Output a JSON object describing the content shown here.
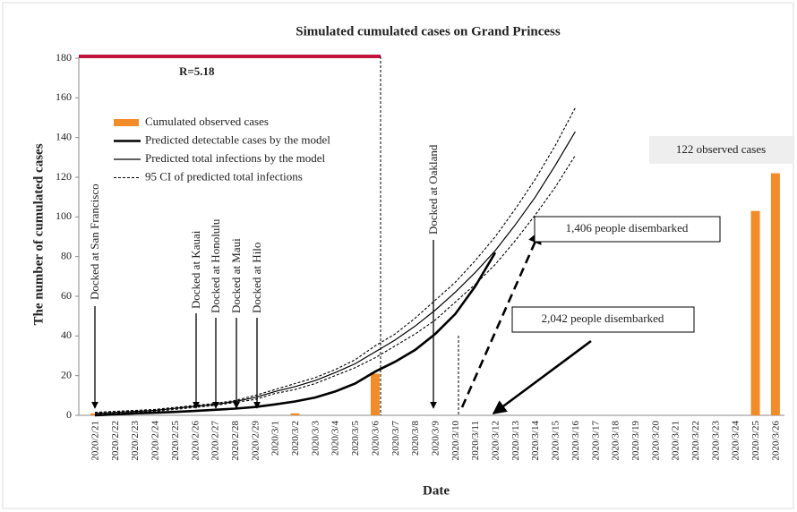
{
  "chart_data": {
    "type": "bar",
    "title": "Simulated cumulated cases on Grand Princess",
    "x_label": "Date",
    "y_label": "The number of cumulated cases",
    "categories": [
      "2020/2/21",
      "2020/2/22",
      "2020/2/23",
      "2020/2/24",
      "2020/2/25",
      "2020/2/26",
      "2020/2/27",
      "2020/2/28",
      "2020/2/29",
      "2020/3/1",
      "2020/3/2",
      "2020/3/3",
      "2020/3/4",
      "2020/3/5",
      "2020/3/6",
      "2020/3/7",
      "2020/3/8",
      "2020/3/9",
      "2020/3/10",
      "2020/3/11",
      "2020/3/12",
      "2020/3/13",
      "2020/3/14",
      "2020/3/15",
      "2020/3/16",
      "2020/3/17",
      "2020/3/18",
      "2020/3/19",
      "2020/3/20",
      "2020/3/21",
      "2020/3/22",
      "2020/3/23",
      "2020/3/24",
      "2020/3/25",
      "2020/3/26"
    ],
    "series": [
      {
        "name": "Cumulated observed cases",
        "type": "bar",
        "color": "#f28c28",
        "values": [
          1,
          0,
          0,
          0,
          0,
          0,
          0,
          0,
          0,
          0,
          1,
          0,
          0,
          0,
          21,
          0,
          0,
          0,
          0,
          0,
          0,
          0,
          0,
          0,
          0,
          0,
          0,
          0,
          0,
          0,
          0,
          0,
          0,
          103,
          122
        ]
      },
      {
        "name": "Predicted detectable cases by the model",
        "type": "line",
        "style": "thick",
        "color": "#000000",
        "values": [
          0,
          0.5,
          1,
          1.3,
          1.7,
          2.2,
          2.8,
          3.4,
          4.2,
          5.5,
          7,
          9,
          12,
          16,
          22,
          27,
          33,
          41,
          51,
          65,
          82,
          null,
          null,
          null,
          null,
          null,
          null,
          null,
          null,
          null,
          null,
          null,
          null,
          null,
          null
        ]
      },
      {
        "name": "Predicted total infections by the model",
        "type": "line",
        "style": "thin",
        "color": "#000000",
        "values": [
          1,
          1.5,
          2,
          2.5,
          3.5,
          4.5,
          5.5,
          7,
          9,
          12,
          14.5,
          17.5,
          21.5,
          26,
          32,
          38,
          45,
          53,
          62,
          72,
          83,
          96,
          110,
          126,
          143,
          null,
          null,
          null,
          null,
          null,
          null,
          null,
          null,
          null,
          null
        ]
      },
      {
        "name": "95 CI of predicted total infections",
        "type": "band",
        "style": "dotted",
        "color": "#000000",
        "upper": [
          1.5,
          2,
          2.5,
          3,
          4,
          5,
          6,
          7.5,
          10,
          13,
          16,
          19,
          23,
          28,
          35,
          41,
          49,
          58,
          67,
          78,
          90,
          104,
          119,
          136,
          155,
          null,
          null,
          null,
          null,
          null,
          null,
          null,
          null,
          null,
          null
        ],
        "lower": [
          0.5,
          1,
          1.5,
          2,
          3,
          4,
          5,
          6.5,
          8,
          11,
          13,
          16,
          20,
          24,
          29,
          35,
          41,
          48,
          57,
          66,
          76,
          88,
          101,
          115,
          131,
          null,
          null,
          null,
          null,
          null,
          null,
          null,
          null,
          null,
          null
        ]
      }
    ],
    "ylim": [
      0,
      180
    ],
    "yticks": [
      0,
      20,
      40,
      60,
      80,
      100,
      120,
      140,
      160,
      180
    ],
    "grid": false,
    "annotations": [
      "R=5.18",
      "Docked at San Francisco",
      "Docked at Kauai",
      "Docked at Honolulu",
      "Docked at Maui",
      "Docked at Hilo",
      "Docked at Oakland",
      "1,406 people disembarked",
      "2,042 people disembarked",
      "122 observed cases"
    ]
  }
}
